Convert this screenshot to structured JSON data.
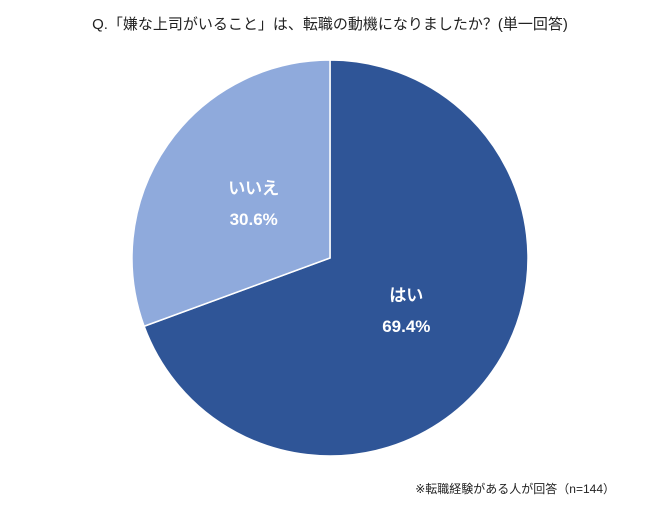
{
  "chart_data": {
    "type": "pie",
    "title": "Q.「嫌な上司がいること」は、転職の動機になりましたか？(単一回答)",
    "categories": [
      "はい",
      "いいえ"
    ],
    "values": [
      69.4,
      30.6
    ],
    "value_labels": [
      "69.4%",
      "30.6%"
    ],
    "colors": [
      "#2f5597",
      "#8faadc"
    ],
    "note": "※転職経験がある人が回答（n=144）"
  }
}
